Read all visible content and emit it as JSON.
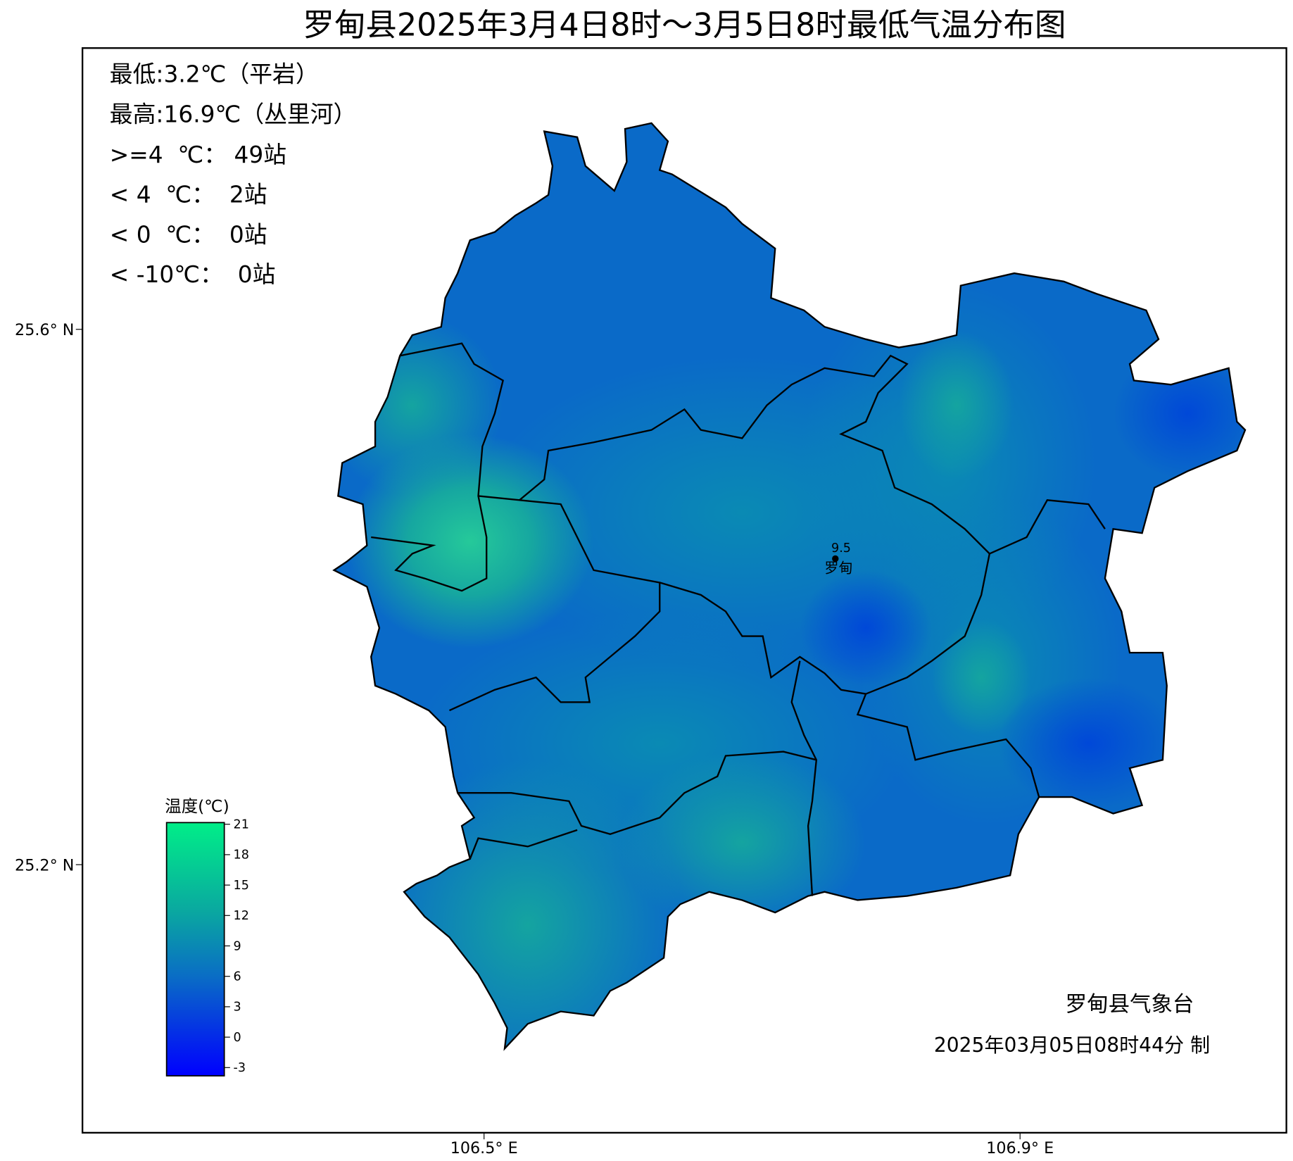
{
  "title": "罗甸县2025年3月4日8时～3月5日8时最低气温分布图",
  "stats": [
    "最低:3.2℃（平岩）",
    "最高:16.9℃（丛里河）",
    ">=4  ℃： 49站",
    "< 4  ℃：  2站",
    "< 0  ℃：  0站",
    "< -10℃：  0站"
  ],
  "axes": {
    "lat": [
      "25.6° N",
      "25.2° N"
    ],
    "lon": [
      "106.5° E",
      "106.9° E"
    ]
  },
  "colorbar": {
    "title": "温度(℃)",
    "ticks": [
      21,
      18,
      15,
      12,
      9,
      6,
      3,
      0,
      -3
    ]
  },
  "station": {
    "value": "9.5",
    "name": "罗甸"
  },
  "footer": {
    "org": "罗甸县气象台",
    "time": "2025年03月05日08时44分 制"
  }
}
